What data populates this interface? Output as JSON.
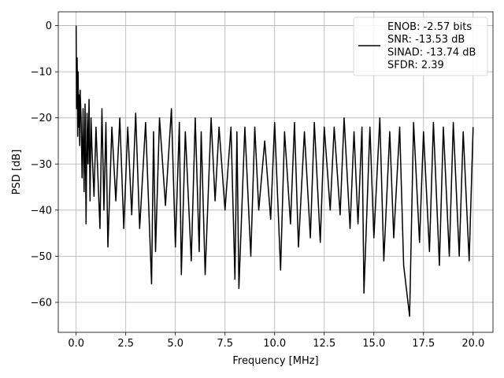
{
  "chart_data": {
    "type": "line",
    "xlabel": "Frequency [MHz]",
    "ylabel": "PSD [dB]",
    "xlim": [
      -0.9,
      21.0
    ],
    "ylim": [
      -66.5,
      3.0
    ],
    "xticks": [
      0.0,
      2.5,
      5.0,
      7.5,
      10.0,
      12.5,
      15.0,
      17.5,
      20.0
    ],
    "xtick_labels": [
      "0.0",
      "2.5",
      "5.0",
      "7.5",
      "10.0",
      "12.5",
      "15.0",
      "17.5",
      "20.0"
    ],
    "yticks": [
      0,
      -10,
      -20,
      -30,
      -40,
      -50,
      -60
    ],
    "ytick_labels": [
      "0",
      "−10",
      "−20",
      "−30",
      "−40",
      "−50",
      "−60"
    ],
    "grid": true,
    "legend_position": "upper-right",
    "legend_lines": [
      "ENOB: -2.57 bits",
      "SNR: -13.53 dB",
      "SINAD: -13.74 dB",
      "SFDR: 2.39"
    ],
    "series": [
      {
        "color": "#000000",
        "x": [
          0.0,
          0.02,
          0.05,
          0.08,
          0.1,
          0.12,
          0.15,
          0.18,
          0.2,
          0.25,
          0.3,
          0.35,
          0.4,
          0.45,
          0.5,
          0.55,
          0.6,
          0.65,
          0.7,
          0.75,
          0.8,
          0.9,
          1.0,
          1.2,
          1.3,
          1.4,
          1.5,
          1.6,
          1.8,
          2.0,
          2.2,
          2.4,
          2.6,
          2.8,
          3.0,
          3.2,
          3.5,
          3.8,
          3.9,
          4.0,
          4.2,
          4.5,
          4.8,
          5.0,
          5.2,
          5.3,
          5.5,
          5.8,
          6.0,
          6.2,
          6.3,
          6.5,
          6.8,
          7.0,
          7.2,
          7.5,
          7.8,
          8.0,
          8.1,
          8.2,
          8.5,
          8.8,
          9.0,
          9.2,
          9.5,
          9.8,
          10.0,
          10.3,
          10.5,
          10.8,
          11.0,
          11.2,
          11.5,
          11.8,
          12.0,
          12.3,
          12.5,
          12.8,
          13.0,
          13.3,
          13.5,
          13.8,
          14.0,
          14.2,
          14.4,
          14.5,
          14.8,
          15.0,
          15.3,
          15.5,
          15.8,
          16.0,
          16.3,
          16.5,
          16.8,
          17.0,
          17.3,
          17.5,
          17.8,
          18.0,
          18.3,
          18.5,
          18.8,
          19.0,
          19.3,
          19.5,
          19.8,
          20.0
        ],
        "y": [
          0.0,
          -18.0,
          -7.0,
          -24.0,
          -10.0,
          -22.0,
          -15.0,
          -26.0,
          -14.0,
          -20.0,
          -33.0,
          -18.0,
          -36.0,
          -17.0,
          -43.0,
          -19.0,
          -30.0,
          -16.0,
          -38.0,
          -20.0,
          -27.0,
          -37.0,
          -22.0,
          -44.0,
          -18.0,
          -40.0,
          -21.0,
          -48.0,
          -22.0,
          -38.0,
          -20.0,
          -44.0,
          -22.0,
          -41.0,
          -19.0,
          -44.0,
          -21.0,
          -56.0,
          -23.0,
          -49.0,
          -20.0,
          -39.0,
          -18.0,
          -48.0,
          -21.0,
          -54.0,
          -23.0,
          -51.0,
          -20.0,
          -49.0,
          -23.0,
          -54.0,
          -20.0,
          -38.0,
          -22.0,
          -40.0,
          -22.0,
          -55.0,
          -23.0,
          -57.0,
          -22.0,
          -50.0,
          -22.0,
          -40.0,
          -25.0,
          -42.0,
          -21.0,
          -53.0,
          -23.0,
          -43.0,
          -21.0,
          -48.0,
          -23.0,
          -46.0,
          -21.0,
          -47.0,
          -22.0,
          -40.0,
          -22.0,
          -41.0,
          -20.0,
          -44.0,
          -23.0,
          -43.0,
          -22.0,
          -58.0,
          -22.0,
          -46.0,
          -20.0,
          -51.0,
          -23.0,
          -46.0,
          -22.0,
          -52.0,
          -63.0,
          -21.0,
          -47.0,
          -23.0,
          -49.0,
          -21.0,
          -52.0,
          -22.0,
          -50.0,
          -21.0,
          -50.0,
          -23.0,
          -51.0,
          -22.0
        ]
      }
    ]
  }
}
